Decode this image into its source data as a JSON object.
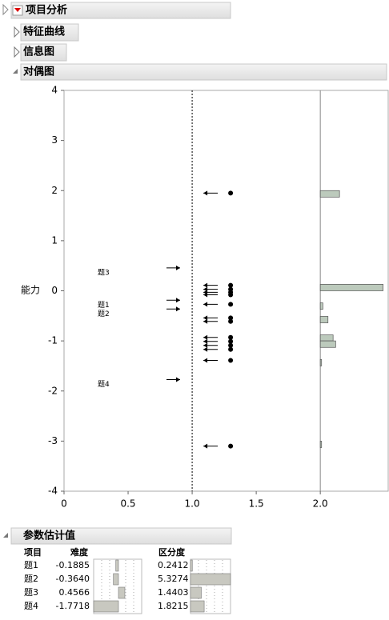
{
  "header": {
    "title": "项目分析"
  },
  "sections": [
    "特征曲线",
    "信息图",
    "对偶图"
  ],
  "chart_data": {
    "type": "scatter",
    "y_label": "能力",
    "xlim": [
      0,
      2.53
    ],
    "xticks": [
      0,
      0.5,
      {
        "value": 1,
        "label": "1.0"
      },
      1.5,
      {
        "value": 2,
        "label": "2.0"
      }
    ],
    "ylim": [
      -4,
      4
    ],
    "yticks": [
      -4,
      -3,
      -2,
      -1,
      0,
      1,
      2,
      3,
      4
    ],
    "reference_x": 1,
    "persons": {
      "x": [
        1.3,
        1.3,
        1.3,
        1.3,
        1.3,
        1.3,
        1.3,
        1.3,
        1.3,
        1.3,
        1.3,
        1.3,
        1.3,
        1.3
      ],
      "y": [
        1.95,
        0.11,
        0.03,
        -0.03,
        -0.08,
        -0.27,
        -0.54,
        -0.61,
        -0.93,
        -1.01,
        -1.09,
        -1.17,
        -1.39,
        -3.1
      ],
      "color": "#000000"
    },
    "histogram": {
      "base": 2,
      "color": "#bccabc",
      "y_low": [
        1.87,
        0,
        -0.37,
        -0.64,
        -1,
        -1.13,
        -1.5,
        -3.13
      ],
      "y_high": [
        2,
        0.13,
        -0.24,
        -0.51,
        -0.88,
        -1,
        -1.37,
        -3
      ],
      "values": [
        0.15,
        0.49,
        0.02,
        0.06,
        0.1,
        0.12,
        0.01,
        0.01
      ]
    }
  },
  "table": {
    "title": "参数估计值",
    "columns": [
      "项目",
      "难度",
      "区分度"
    ],
    "rows": [
      {
        "item": "题1",
        "difficulty": -0.1885,
        "discrimination": 0.2412
      },
      {
        "item": "题2",
        "difficulty": {
          "value": -0.364,
          "label": "-0.3640"
        },
        "discrimination": 5.3274
      },
      {
        "item": "题3",
        "difficulty": 0.4566,
        "discrimination": 1.4403
      },
      {
        "item": "题4",
        "difficulty": -1.7718,
        "discrimination": 1.8215
      }
    ]
  }
}
